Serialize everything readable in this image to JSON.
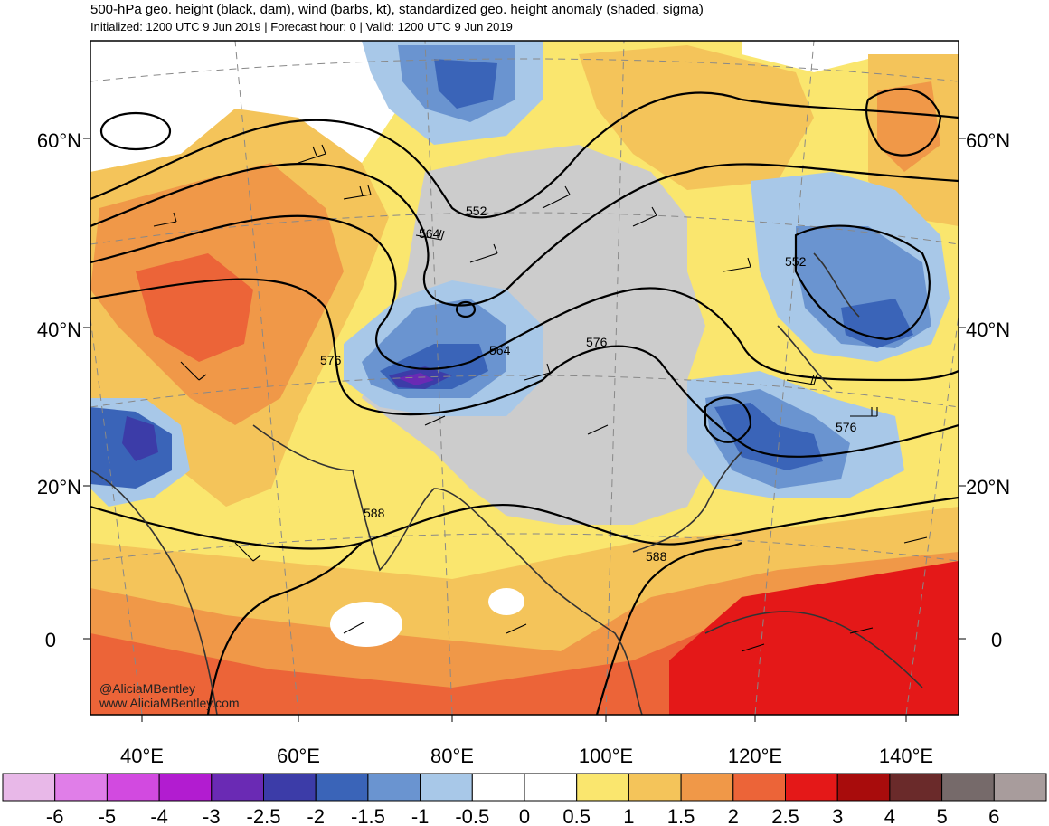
{
  "header": {
    "title": "500-hPa geo. height (black, dam), wind (barbs, kt), standardized geo. height anomaly (shaded, sigma)",
    "subtitle": "Initialized: 1200 UTC 9 Jun 2019 | Forecast hour: 0 | Valid: 1200 UTC 9 Jun 2019"
  },
  "credit": {
    "handle": "@AliciaMBentley",
    "site": "www.AliciaMBentley.com"
  },
  "axes": {
    "lat_labels": [
      "60°N",
      "40°N",
      "20°N",
      "0"
    ],
    "lon_labels": [
      "40°E",
      "60°E",
      "80°E",
      "100°E",
      "120°E",
      "140°E"
    ]
  },
  "contour_labels": [
    "552",
    "564",
    "576",
    "564",
    "576",
    "552",
    "576",
    "588",
    "588"
  ],
  "colorbar": {
    "ticks": [
      "-6",
      "-5",
      "-4",
      "-3",
      "-2.5",
      "-2",
      "-1.5",
      "-1",
      "-0.5",
      "0",
      "0.5",
      "1",
      "1.5",
      "2",
      "2.5",
      "3",
      "4",
      "5",
      "6"
    ],
    "colors": [
      "#e8b8e8",
      "#e07ee8",
      "#d24ae0",
      "#b21cd0",
      "#6a2ab4",
      "#3c3ca8",
      "#3a64b8",
      "#6a94d0",
      "#a8c8e8",
      "#ffffff",
      "#ffffff",
      "#fae66e",
      "#f4c45a",
      "#f09848",
      "#ec6438",
      "#e41818",
      "#a80c0c",
      "#6a2a2a",
      "#766a6a",
      "#a89c9c"
    ]
  },
  "colors": {
    "anomaly_pos_05": "#fae66e",
    "anomaly_pos_1": "#f4c45a",
    "anomaly_pos_15": "#f09848",
    "anomaly_pos_2": "#ec6438",
    "anomaly_pos_25": "#e41818",
    "anomaly_neg_05": "#a8c8e8",
    "anomaly_neg_1": "#6a94d0",
    "anomaly_neg_15": "#3a64b8",
    "anomaly_neg_2": "#3c3ca8",
    "anomaly_neg_25": "#6a2ab4",
    "gray_high": "#cccccc"
  }
}
